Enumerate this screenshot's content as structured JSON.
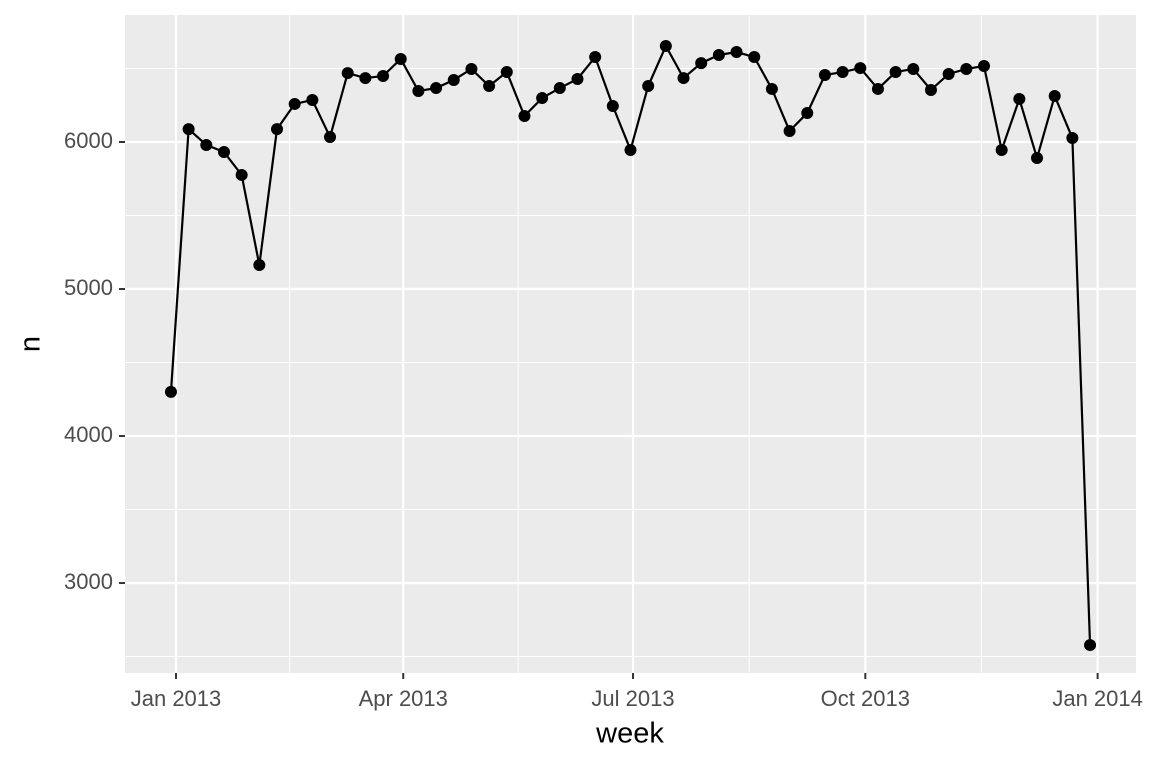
{
  "chart_data": {
    "type": "line",
    "x_label": "week",
    "y_label": "n",
    "x": [
      15704,
      15711,
      15718,
      15725,
      15732,
      15739,
      15746,
      15753,
      15760,
      15767,
      15774,
      15781,
      15788,
      15795,
      15802,
      15809,
      15816,
      15823,
      15830,
      15837,
      15844,
      15851,
      15858,
      15865,
      15872,
      15879,
      15886,
      15893,
      15900,
      15907,
      15914,
      15921,
      15928,
      15935,
      15942,
      15949,
      15956,
      15963,
      15970,
      15977,
      15984,
      15991,
      15998,
      16005,
      16012,
      16019,
      16026,
      16033,
      16040,
      16047,
      16054,
      16061,
      16068
    ],
    "series": [
      {
        "color": "#000000",
        "values": [
          4300,
          6088,
          5980,
          5932,
          5776,
          5163,
          6088,
          6259,
          6286,
          6034,
          6469,
          6435,
          6449,
          6565,
          6347,
          6367,
          6422,
          6497,
          6381,
          6476,
          6177,
          6299,
          6367,
          6429,
          6578,
          6245,
          5946,
          6381,
          6653,
          6435,
          6537,
          6592,
          6612,
          6578,
          6361,
          6075,
          6197,
          6456,
          6476,
          6503,
          6361,
          6476,
          6497,
          6354,
          6463,
          6497,
          6517,
          5946,
          6293,
          5891,
          6313,
          6027,
          2578
        ]
      }
    ],
    "xlim": [
      15685.8,
      16086.2
    ],
    "xticks": [
      {
        "value": 15706,
        "label": "Jan 2013"
      },
      {
        "value": 15796,
        "label": "Apr 2013"
      },
      {
        "value": 15887,
        "label": "Jul 2013"
      },
      {
        "value": 15979,
        "label": "Oct 2013"
      },
      {
        "value": 16071,
        "label": "Jan 2014"
      }
    ],
    "ylim": [
      2388,
      6864
    ],
    "yticks": [
      3000,
      4000,
      5000,
      6000
    ],
    "grid": true
  }
}
